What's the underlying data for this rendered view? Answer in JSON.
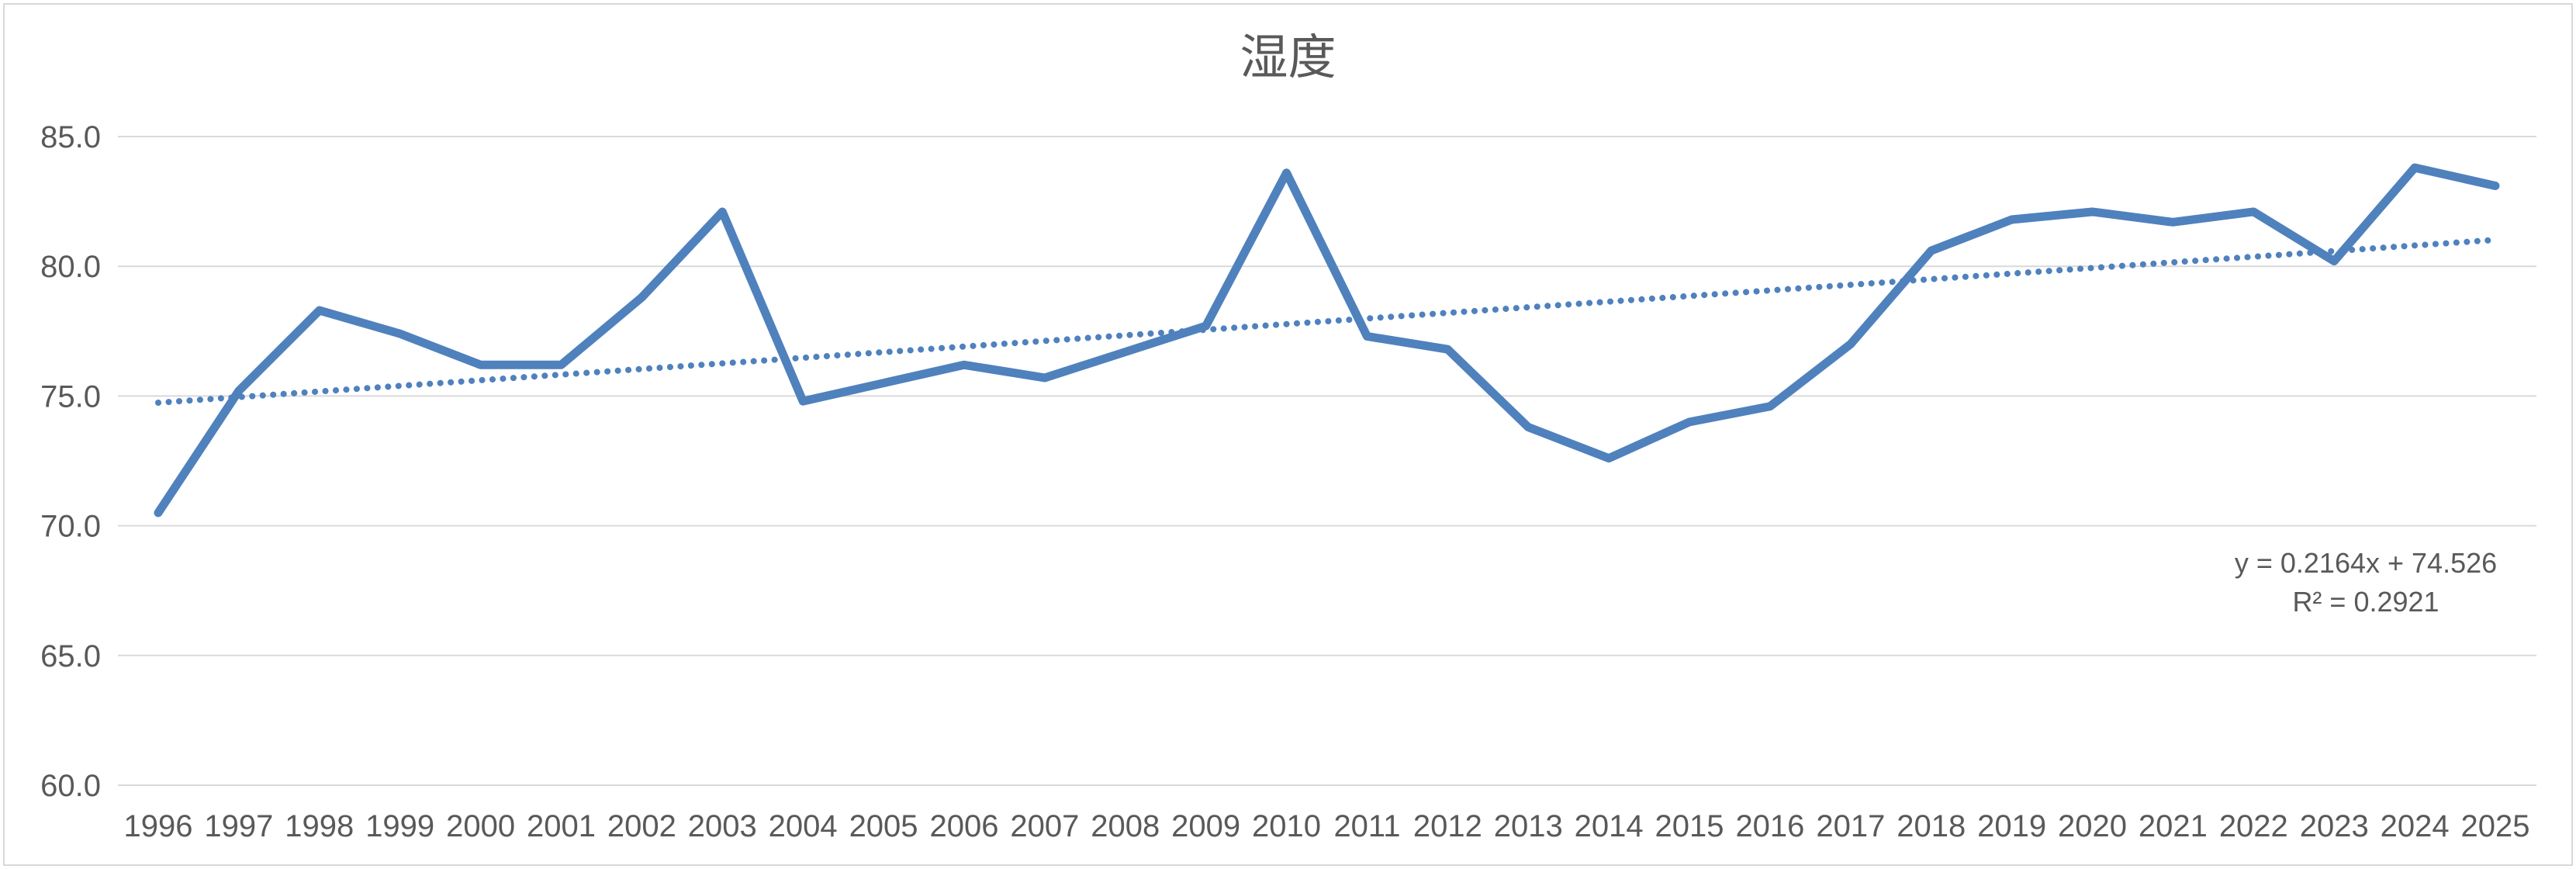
{
  "chart": {
    "title": "湿度"
  },
  "chart_data": {
    "type": "line",
    "title": "湿度",
    "categories": [
      "1996",
      "1997",
      "1998",
      "1999",
      "2000",
      "2001",
      "2002",
      "2003",
      "2004",
      "2005",
      "2006",
      "2007",
      "2008",
      "2009",
      "2010",
      "2011",
      "2012",
      "2013",
      "2014",
      "2015",
      "2016",
      "2017",
      "2018",
      "2019",
      "2020",
      "2021",
      "2022",
      "2023",
      "2024",
      "2025"
    ],
    "series": [
      {
        "name": "湿度",
        "values": [
          70.5,
          75.2,
          78.3,
          77.4,
          76.2,
          76.2,
          78.8,
          82.1,
          74.8,
          75.5,
          76.2,
          75.7,
          76.7,
          77.7,
          83.6,
          77.3,
          76.8,
          73.8,
          72.6,
          74.0,
          74.6,
          77.0,
          80.6,
          81.8,
          82.1,
          81.7,
          82.1,
          80.2,
          83.8,
          83.1
        ]
      }
    ],
    "trendline": {
      "equation": "y = 0.2164x + 74.526",
      "r_squared": "R² = 0.2921",
      "slope": 0.2164,
      "intercept": 74.526,
      "style": "dotted"
    },
    "xlabel": "",
    "ylabel": "",
    "ylim": [
      60,
      85
    ],
    "ytick_step": 5,
    "ytick_labels": [
      "85.0",
      "80.0",
      "75.0",
      "70.0",
      "65.0",
      "60.0"
    ],
    "ytick_values": [
      85,
      80,
      75,
      70,
      65,
      60
    ],
    "grid": true,
    "legend_position": "none",
    "colors": {
      "series": "#4F81BD",
      "trendline": "#4F81BD",
      "gridline": "#d9d9d9",
      "text": "#595959",
      "background": "#ffffff"
    }
  }
}
